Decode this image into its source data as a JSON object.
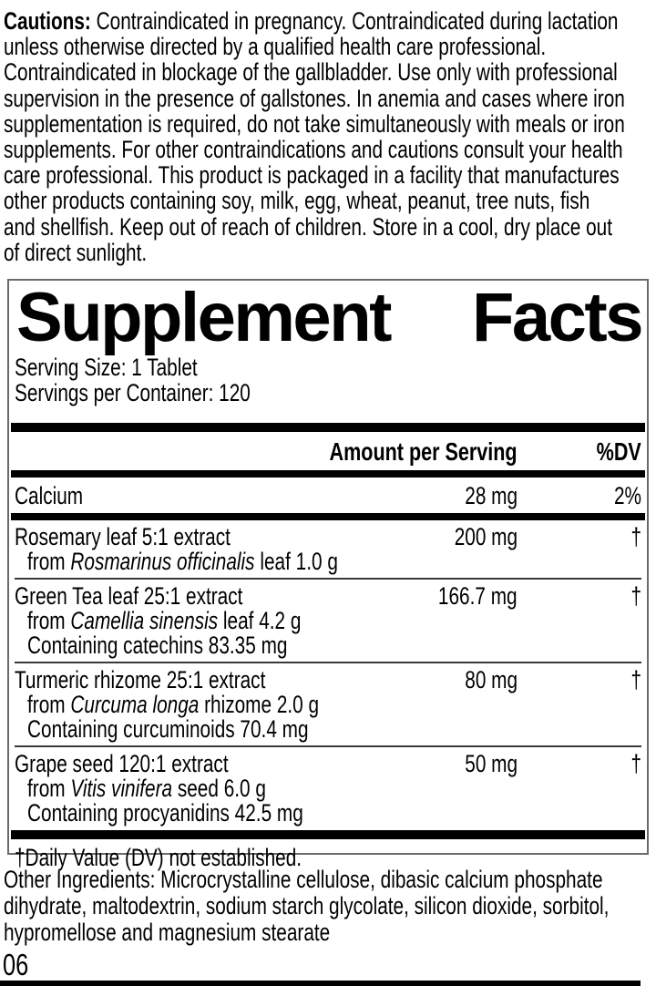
{
  "cautions": {
    "label": "Cautions:",
    "lines": [
      " Contraindicated in pregnancy. Contraindicated during lactation",
      "unless otherwise directed by a qualified health care professional.",
      "Contraindicated in blockage of the gallbladder. Use only with professional",
      "supervision in the presence of gallstones. In anemia and cases where iron",
      "supplementation is required, do not take simultaneously with meals or iron",
      "supplements. For other contraindications and cautions consult your health",
      "care professional. This product is packaged in a facility that manufactures",
      "other products containing soy, milk, egg, wheat, peanut, tree nuts, fish",
      "and shellfish. Keep out of reach of children. Store in a cool, dry place out",
      "of direct sunlight."
    ]
  },
  "panel": {
    "title_word1": "Supplement",
    "title_word2": "Facts",
    "serving_size": "Serving Size: 1 Tablet",
    "servings_per_container": "Servings per Container: 120",
    "col_amount": "Amount per Serving",
    "col_dv": "%DV",
    "rows": [
      {
        "name": "Calcium",
        "amount": "28 mg",
        "dv": "2%"
      },
      {
        "name": "Rosemary leaf 5:1 extract",
        "amount": "200 mg",
        "dv": "†",
        "sub": [
          {
            "pre": "from ",
            "it": "Rosmarinus officinalis",
            "post": " leaf 1.0 g"
          }
        ]
      },
      {
        "name": "Green Tea leaf 25:1 extract",
        "amount": "166.7 mg",
        "dv": "†",
        "sub": [
          {
            "pre": "from ",
            "it": "Camellia sinensis",
            "post": " leaf 4.2 g"
          },
          {
            "pre": "Containing catechins 83.35 mg",
            "it": "",
            "post": ""
          }
        ]
      },
      {
        "name": "Turmeric rhizome 25:1 extract",
        "amount": "80 mg",
        "dv": "†",
        "sub": [
          {
            "pre": "from ",
            "it": "Curcuma longa",
            "post": " rhizome 2.0 g"
          },
          {
            "pre": "Containing curcuminoids 70.4 mg",
            "it": "",
            "post": ""
          }
        ]
      },
      {
        "name": "Grape seed 120:1 extract",
        "amount": "50 mg",
        "dv": "†",
        "sub": [
          {
            "pre": "from ",
            "it": "Vitis vinifera",
            "post": " seed 6.0 g"
          },
          {
            "pre": "Containing procyanidins 42.5 mg",
            "it": "",
            "post": ""
          }
        ]
      }
    ],
    "footnote": "†Daily Value (DV) not established."
  },
  "other_ingredients": {
    "lines": [
      "Other Ingredients: Microcrystalline cellulose, dibasic calcium phosphate",
      "dihydrate, maltodextrin, sodium starch glycolate, silicon dioxide, sorbitol,",
      "hypromellose and magnesium stearate"
    ]
  },
  "footer": {
    "code": "06"
  },
  "colors": {
    "text": "#000000",
    "bar": "#000000",
    "panel_border": "#6a6a6a"
  }
}
